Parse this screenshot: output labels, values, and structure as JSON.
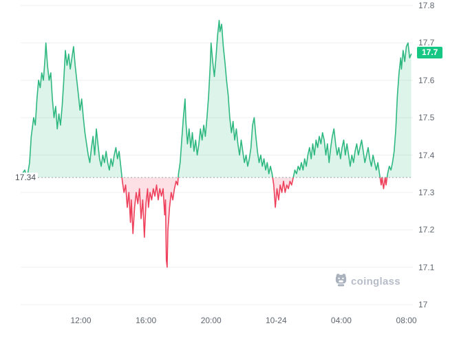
{
  "chart": {
    "baseline_label": "17.34",
    "current_price_label": "17.7",
    "watermark_text": "coinglass"
  },
  "chart_data": {
    "type": "line",
    "title": "",
    "xlabel": "",
    "ylabel": "",
    "xlim": [
      8.3,
      32.4
    ],
    "ylim": [
      17.0,
      17.8
    ],
    "baseline": 17.34,
    "grid": true,
    "legend": "none",
    "y_ticks": [
      {
        "value": 17.8,
        "label": "17.8"
      },
      {
        "value": 17.7,
        "label": "17.7"
      },
      {
        "value": 17.6,
        "label": "17.6"
      },
      {
        "value": 17.5,
        "label": "17.5"
      },
      {
        "value": 17.4,
        "label": "17.4"
      },
      {
        "value": 17.3,
        "label": "17.3"
      },
      {
        "value": 17.2,
        "label": "17.2"
      },
      {
        "value": 17.1,
        "label": "17.1"
      },
      {
        "value": 17.0,
        "label": "17"
      }
    ],
    "x_ticks": [
      {
        "t": 12,
        "label": "12:00"
      },
      {
        "t": 16,
        "label": "16:00"
      },
      {
        "t": 20,
        "label": "20:00"
      },
      {
        "t": 24,
        "label": "10-24"
      },
      {
        "t": 28,
        "label": "04:00"
      },
      {
        "t": 32,
        "label": "08:00"
      }
    ],
    "colors": {
      "up_line": "#2eb880",
      "up_fill": "rgba(46,184,128,0.16)",
      "down_line": "#ee3f5b",
      "down_fill": "rgba(238,63,91,0.16)",
      "grid": "#efefef",
      "baseline": "#9aa0a6",
      "badge_bg": "#16c784",
      "axis_text": "#5f6670",
      "watermark": "#b2b9c3"
    },
    "series": [
      {
        "name": "price",
        "points": [
          [
            8.4,
            17.35
          ],
          [
            8.55,
            17.36
          ],
          [
            8.7,
            17.34
          ],
          [
            8.85,
            17.38
          ],
          [
            8.95,
            17.45
          ],
          [
            9.1,
            17.5
          ],
          [
            9.2,
            17.48
          ],
          [
            9.3,
            17.55
          ],
          [
            9.4,
            17.6
          ],
          [
            9.5,
            17.58
          ],
          [
            9.6,
            17.62
          ],
          [
            9.7,
            17.6
          ],
          [
            9.8,
            17.66
          ],
          [
            9.85,
            17.7
          ],
          [
            9.95,
            17.64
          ],
          [
            10.05,
            17.6
          ],
          [
            10.15,
            17.62
          ],
          [
            10.25,
            17.55
          ],
          [
            10.35,
            17.5
          ],
          [
            10.45,
            17.53
          ],
          [
            10.55,
            17.47
          ],
          [
            10.65,
            17.51
          ],
          [
            10.75,
            17.48
          ],
          [
            10.85,
            17.53
          ],
          [
            10.95,
            17.6
          ],
          [
            11.05,
            17.68
          ],
          [
            11.15,
            17.64
          ],
          [
            11.25,
            17.67
          ],
          [
            11.35,
            17.63
          ],
          [
            11.45,
            17.66
          ],
          [
            11.55,
            17.69
          ],
          [
            11.65,
            17.64
          ],
          [
            11.75,
            17.6
          ],
          [
            11.85,
            17.56
          ],
          [
            11.95,
            17.52
          ],
          [
            12.05,
            17.55
          ],
          [
            12.15,
            17.5
          ],
          [
            12.25,
            17.46
          ],
          [
            12.35,
            17.43
          ],
          [
            12.45,
            17.4
          ],
          [
            12.55,
            17.38
          ],
          [
            12.65,
            17.42
          ],
          [
            12.75,
            17.45
          ],
          [
            12.85,
            17.4
          ],
          [
            12.95,
            17.47
          ],
          [
            13.05,
            17.43
          ],
          [
            13.15,
            17.39
          ],
          [
            13.25,
            17.37
          ],
          [
            13.35,
            17.4
          ],
          [
            13.45,
            17.38
          ],
          [
            13.55,
            17.41
          ],
          [
            13.65,
            17.38
          ],
          [
            13.75,
            17.36
          ],
          [
            13.85,
            17.39
          ],
          [
            13.95,
            17.37
          ],
          [
            14.05,
            17.4
          ],
          [
            14.15,
            17.42
          ],
          [
            14.25,
            17.39
          ],
          [
            14.35,
            17.41
          ],
          [
            14.45,
            17.37
          ],
          [
            14.55,
            17.33
          ],
          [
            14.65,
            17.3
          ],
          [
            14.75,
            17.32
          ],
          [
            14.85,
            17.26
          ],
          [
            14.95,
            17.3
          ],
          [
            15.05,
            17.22
          ],
          [
            15.1,
            17.28
          ],
          [
            15.2,
            17.19
          ],
          [
            15.3,
            17.26
          ],
          [
            15.4,
            17.3
          ],
          [
            15.5,
            17.27
          ],
          [
            15.6,
            17.31
          ],
          [
            15.7,
            17.23
          ],
          [
            15.8,
            17.28
          ],
          [
            15.9,
            17.18
          ],
          [
            16.0,
            17.27
          ],
          [
            16.1,
            17.31
          ],
          [
            16.15,
            17.26
          ],
          [
            16.25,
            17.3
          ],
          [
            16.35,
            17.28
          ],
          [
            16.45,
            17.31
          ],
          [
            16.55,
            17.29
          ],
          [
            16.65,
            17.32
          ],
          [
            16.75,
            17.28
          ],
          [
            16.85,
            17.31
          ],
          [
            16.95,
            17.29
          ],
          [
            17.05,
            17.31
          ],
          [
            17.15,
            17.24
          ],
          [
            17.2,
            17.28
          ],
          [
            17.25,
            17.12
          ],
          [
            17.3,
            17.1
          ],
          [
            17.35,
            17.2
          ],
          [
            17.45,
            17.26
          ],
          [
            17.55,
            17.3
          ],
          [
            17.65,
            17.28
          ],
          [
            17.75,
            17.31
          ],
          [
            17.85,
            17.33
          ],
          [
            17.95,
            17.32
          ],
          [
            18.0,
            17.35
          ],
          [
            18.1,
            17.38
          ],
          [
            18.2,
            17.44
          ],
          [
            18.3,
            17.5
          ],
          [
            18.4,
            17.55
          ],
          [
            18.45,
            17.49
          ],
          [
            18.55,
            17.43
          ],
          [
            18.65,
            17.47
          ],
          [
            18.75,
            17.42
          ],
          [
            18.85,
            17.46
          ],
          [
            18.95,
            17.41
          ],
          [
            19.05,
            17.44
          ],
          [
            19.15,
            17.4
          ],
          [
            19.25,
            17.43
          ],
          [
            19.35,
            17.47
          ],
          [
            19.45,
            17.44
          ],
          [
            19.55,
            17.48
          ],
          [
            19.65,
            17.45
          ],
          [
            19.75,
            17.5
          ],
          [
            19.85,
            17.56
          ],
          [
            19.95,
            17.64
          ],
          [
            20.0,
            17.7
          ],
          [
            20.1,
            17.65
          ],
          [
            20.2,
            17.61
          ],
          [
            20.3,
            17.66
          ],
          [
            20.4,
            17.72
          ],
          [
            20.5,
            17.76
          ],
          [
            20.55,
            17.73
          ],
          [
            20.65,
            17.75
          ],
          [
            20.75,
            17.69
          ],
          [
            20.85,
            17.65
          ],
          [
            20.95,
            17.6
          ],
          [
            21.05,
            17.56
          ],
          [
            21.15,
            17.5
          ],
          [
            21.25,
            17.46
          ],
          [
            21.35,
            17.49
          ],
          [
            21.45,
            17.44
          ],
          [
            21.55,
            17.47
          ],
          [
            21.65,
            17.43
          ],
          [
            21.75,
            17.4
          ],
          [
            21.85,
            17.44
          ],
          [
            21.95,
            17.41
          ],
          [
            22.05,
            17.38
          ],
          [
            22.15,
            17.4
          ],
          [
            22.25,
            17.37
          ],
          [
            22.35,
            17.39
          ],
          [
            22.45,
            17.42
          ],
          [
            22.55,
            17.48
          ],
          [
            22.65,
            17.5
          ],
          [
            22.75,
            17.45
          ],
          [
            22.85,
            17.41
          ],
          [
            22.95,
            17.38
          ],
          [
            23.05,
            17.4
          ],
          [
            23.15,
            17.37
          ],
          [
            23.25,
            17.39
          ],
          [
            23.35,
            17.36
          ],
          [
            23.45,
            17.38
          ],
          [
            23.55,
            17.35
          ],
          [
            23.65,
            17.37
          ],
          [
            23.75,
            17.35
          ],
          [
            23.85,
            17.32
          ],
          [
            23.95,
            17.26
          ],
          [
            24.05,
            17.31
          ],
          [
            24.15,
            17.28
          ],
          [
            24.25,
            17.32
          ],
          [
            24.35,
            17.3
          ],
          [
            24.45,
            17.33
          ],
          [
            24.55,
            17.3
          ],
          [
            24.65,
            17.32
          ],
          [
            24.75,
            17.31
          ],
          [
            24.85,
            17.33
          ],
          [
            24.95,
            17.32
          ],
          [
            25.05,
            17.34
          ],
          [
            25.15,
            17.36
          ],
          [
            25.25,
            17.35
          ],
          [
            25.35,
            17.37
          ],
          [
            25.45,
            17.36
          ],
          [
            25.55,
            17.38
          ],
          [
            25.65,
            17.36
          ],
          [
            25.75,
            17.39
          ],
          [
            25.85,
            17.37
          ],
          [
            25.95,
            17.4
          ],
          [
            26.05,
            17.42
          ],
          [
            26.15,
            17.39
          ],
          [
            26.25,
            17.43
          ],
          [
            26.35,
            17.4
          ],
          [
            26.45,
            17.44
          ],
          [
            26.55,
            17.42
          ],
          [
            26.65,
            17.45
          ],
          [
            26.75,
            17.43
          ],
          [
            26.85,
            17.46
          ],
          [
            26.95,
            17.44
          ],
          [
            27.05,
            17.4
          ],
          [
            27.15,
            17.43
          ],
          [
            27.25,
            17.38
          ],
          [
            27.35,
            17.42
          ],
          [
            27.45,
            17.45
          ],
          [
            27.55,
            17.47
          ],
          [
            27.65,
            17.43
          ],
          [
            27.75,
            17.4
          ],
          [
            27.85,
            17.42
          ],
          [
            27.95,
            17.39
          ],
          [
            28.05,
            17.42
          ],
          [
            28.15,
            17.44
          ],
          [
            28.25,
            17.4
          ],
          [
            28.35,
            17.43
          ],
          [
            28.45,
            17.4
          ],
          [
            28.55,
            17.37
          ],
          [
            28.65,
            17.4
          ],
          [
            28.75,
            17.38
          ],
          [
            28.85,
            17.41
          ],
          [
            28.95,
            17.43
          ],
          [
            29.05,
            17.4
          ],
          [
            29.15,
            17.42
          ],
          [
            29.25,
            17.44
          ],
          [
            29.35,
            17.41
          ],
          [
            29.45,
            17.38
          ],
          [
            29.55,
            17.4
          ],
          [
            29.65,
            17.42
          ],
          [
            29.75,
            17.39
          ],
          [
            29.85,
            17.37
          ],
          [
            29.95,
            17.4
          ],
          [
            30.05,
            17.38
          ],
          [
            30.15,
            17.36
          ],
          [
            30.25,
            17.38
          ],
          [
            30.35,
            17.35
          ],
          [
            30.45,
            17.32
          ],
          [
            30.5,
            17.34
          ],
          [
            30.6,
            17.31
          ],
          [
            30.7,
            17.34
          ],
          [
            30.75,
            17.32
          ],
          [
            30.85,
            17.35
          ],
          [
            30.95,
            17.37
          ],
          [
            31.05,
            17.36
          ],
          [
            31.15,
            17.38
          ],
          [
            31.25,
            17.41
          ],
          [
            31.35,
            17.47
          ],
          [
            31.45,
            17.56
          ],
          [
            31.55,
            17.62
          ],
          [
            31.65,
            17.66
          ],
          [
            31.7,
            17.63
          ],
          [
            31.8,
            17.68
          ],
          [
            31.9,
            17.65
          ],
          [
            32.0,
            17.69
          ],
          [
            32.1,
            17.7
          ],
          [
            32.2,
            17.66
          ],
          [
            32.3,
            17.67
          ]
        ]
      }
    ]
  }
}
